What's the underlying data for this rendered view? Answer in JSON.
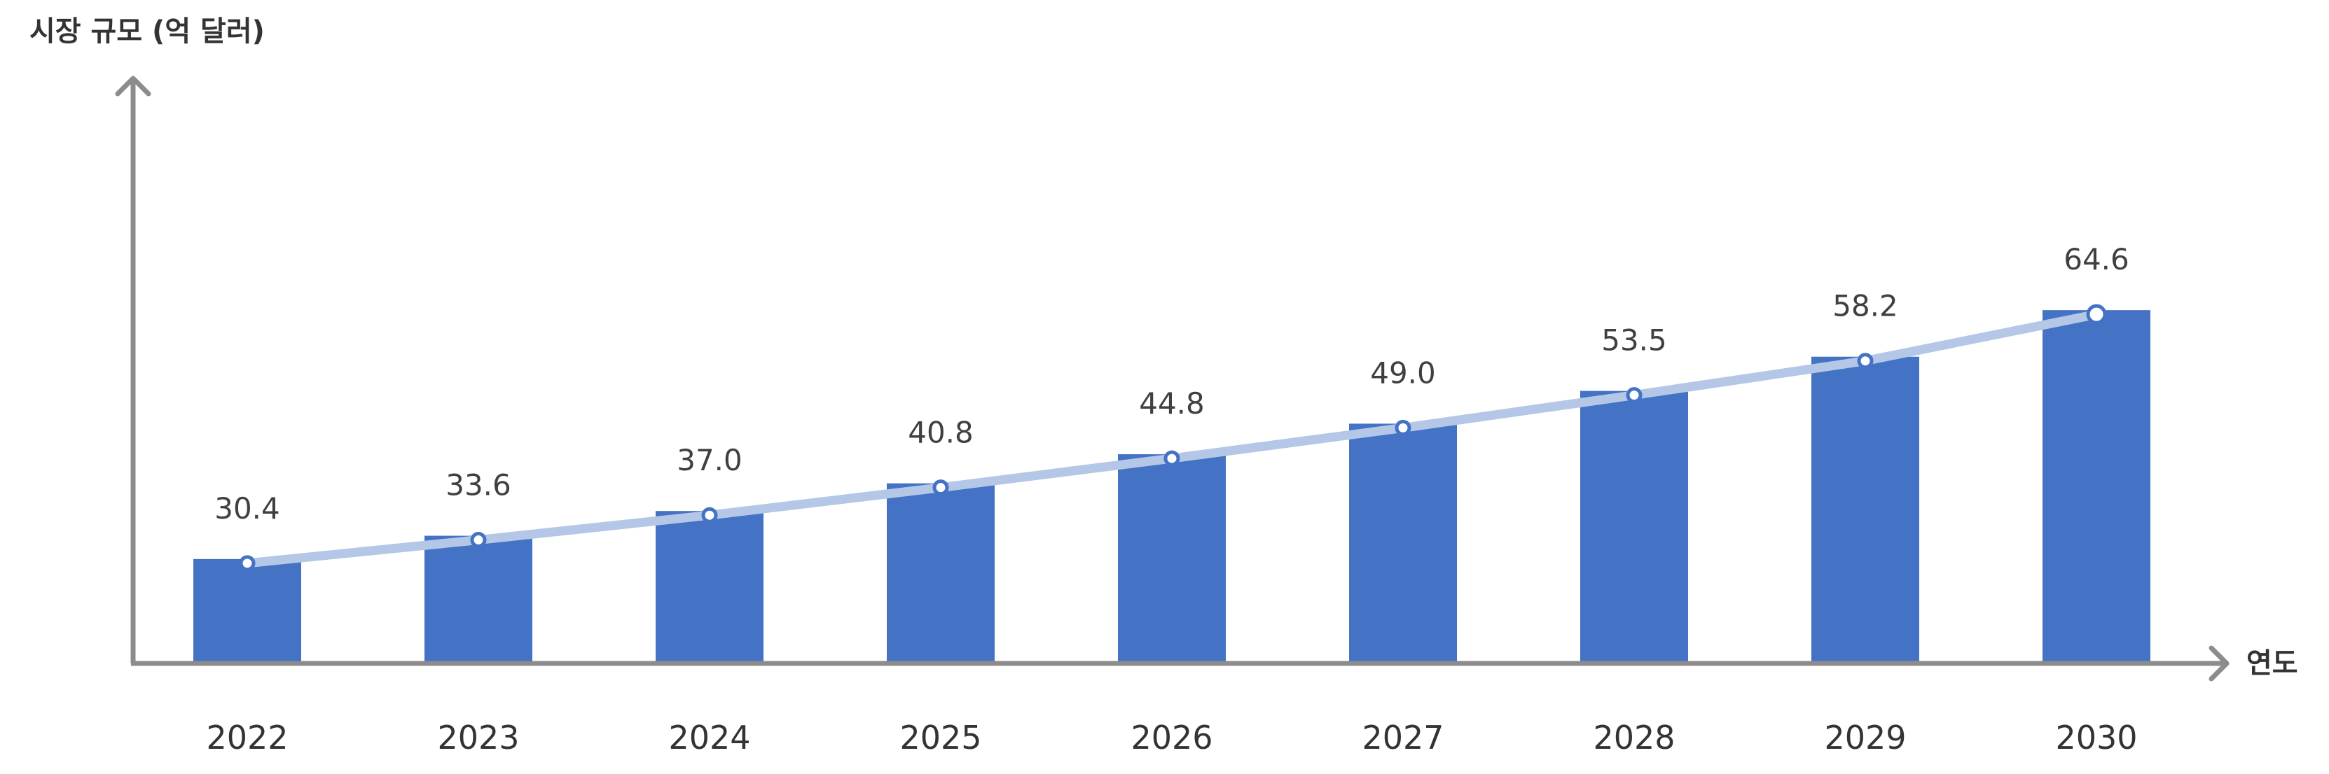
{
  "chart_data": {
    "type": "bar",
    "title": "",
    "ylabel": "시장 규모 (억 달러)",
    "xlabel": "연도",
    "categories": [
      "2022",
      "2023",
      "2024",
      "2025",
      "2026",
      "2027",
      "2028",
      "2029",
      "2030"
    ],
    "series": [
      {
        "values": [
          30.4,
          33.6,
          37.0,
          40.8,
          44.8,
          49.0,
          53.5,
          58.2,
          64.6
        ],
        "labels": [
          "30.4",
          "33.6",
          "37.0",
          "40.8",
          "44.8",
          "49.0",
          "53.5",
          "58.2",
          "64.6"
        ]
      }
    ],
    "trend_line": true,
    "grid": false,
    "legend": "none",
    "colors": {
      "bar": "#4472C4",
      "trend": "#B4C7E7",
      "axis": "#8C8C8C",
      "text": "#333333"
    }
  }
}
